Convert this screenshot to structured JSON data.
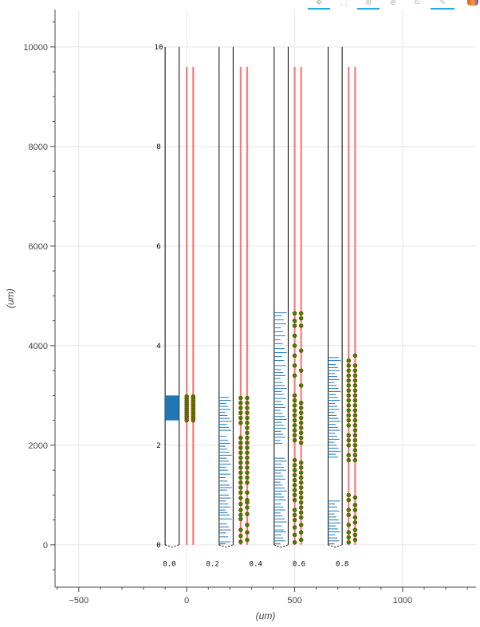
{
  "toolbar": {
    "tools": [
      {
        "name": "pan-tool",
        "glyph": "✥",
        "active": true
      },
      {
        "name": "box-zoom-tool",
        "glyph": "⬚",
        "active": false
      },
      {
        "name": "wheel-zoom-tool",
        "glyph": "⊕",
        "active": true
      },
      {
        "name": "zoom-in-tool",
        "glyph": "⊕",
        "active": false
      },
      {
        "name": "reset-tool",
        "glyph": "↻",
        "active": false
      },
      {
        "name": "hover-tool",
        "glyph": "✎",
        "active": true
      }
    ],
    "logo": "bokeh-logo-icon"
  },
  "chart_data": {
    "type": "scatter",
    "xlabel": "(um)",
    "ylabel": "(um)",
    "xlim": [
      -610,
      1340
    ],
    "ylim": [
      -850,
      10750
    ],
    "x_ticks": [
      -500,
      0,
      500,
      1000
    ],
    "x_tick_labels": [
      "−500",
      "0",
      "500",
      "1000"
    ],
    "y_ticks": [
      0,
      2000,
      4000,
      6000,
      8000,
      10000
    ],
    "y_tick_labels": [
      "0",
      "2000",
      "4000",
      "6000",
      "8000",
      "10000"
    ],
    "grid": true,
    "inner_axis": {
      "x": -130,
      "y_ticks": [
        0,
        2000,
        4000,
        6000,
        8000,
        10000
      ],
      "y_tick_labels": [
        "0",
        "2",
        "4",
        "6",
        "8",
        "10"
      ],
      "x_ticks": [
        -80,
        120,
        320,
        520,
        720
      ],
      "x_tick_labels": [
        "0.0",
        "0.2",
        "0.4",
        "0.6",
        "0.8"
      ],
      "label_y": -380
    },
    "colors": {
      "probe_line": "#000000",
      "trace": "#ff6b6b",
      "marker_fill": "#2a8a00",
      "marker_edge": "#a04000",
      "bar": "#1f77b4",
      "grid": "#e5e5e5",
      "axis": "#444444"
    },
    "probes": [
      {
        "box": [
          -100,
          -35
        ],
        "traces": [
          0,
          30
        ],
        "solid_bar": [
          2500,
          3000
        ],
        "dashes": [],
        "markers_left": [
          2500,
          2540,
          2580,
          2620,
          2660,
          2700,
          2740,
          2780,
          2820,
          2860,
          2900,
          2940,
          2980
        ],
        "markers_right": [
          2500,
          2540,
          2580,
          2620,
          2660,
          2700,
          2740,
          2780,
          2820,
          2860,
          2900,
          2940,
          2980
        ]
      },
      {
        "box": [
          150,
          215
        ],
        "traces": [
          250,
          280
        ],
        "solid_bar": null,
        "dashes": [
          20,
          60,
          160,
          240,
          300,
          360,
          420,
          520,
          600,
          650,
          700,
          760,
          820,
          880,
          940,
          1000,
          1100,
          1150,
          1200,
          1280,
          1350,
          1420,
          1500,
          1560,
          1620,
          1680,
          1740,
          1800,
          1860,
          1920,
          1980,
          2040,
          2100,
          2180,
          2300,
          2360,
          2420,
          2480,
          2540,
          2600,
          2660,
          2720,
          2780,
          2840,
          2900,
          2960
        ],
        "markers_left": [
          60,
          180,
          300,
          520,
          600,
          700,
          820,
          940,
          1050,
          1150,
          1250,
          1350,
          1450,
          1550,
          1650,
          1750,
          1850,
          1950,
          2050,
          2150,
          2450,
          2550,
          2650,
          2750,
          2850,
          2950
        ],
        "markers_right": [
          100,
          250,
          400,
          620,
          750,
          850,
          900,
          1050,
          1250,
          1350,
          1450,
          1550,
          1650,
          1750,
          1850,
          1950,
          2050,
          2150,
          2250,
          2350,
          2450,
          2550,
          2650,
          2750,
          2850,
          2950
        ]
      },
      {
        "box": [
          405,
          470
        ],
        "traces": [
          500,
          530
        ],
        "solid_bar": null,
        "dashes": [
          20,
          80,
          140,
          200,
          260,
          300,
          380,
          460,
          520,
          580,
          640,
          700,
          760,
          820,
          900,
          960,
          1020,
          1080,
          1140,
          1200,
          1260,
          1320,
          1380,
          1440,
          1500,
          1560,
          1620,
          1680,
          1740,
          2040,
          2100,
          2160,
          2220,
          2280,
          2340,
          2400,
          2460,
          2520,
          2580,
          2640,
          2700,
          2760,
          2820,
          2880,
          2940,
          3020,
          3080,
          3140,
          3200,
          3260,
          3340,
          3400,
          3460,
          3520,
          3600,
          3700,
          3780,
          3860,
          3940,
          4040,
          4120,
          4200,
          4280,
          4360,
          4440,
          4520,
          4600,
          4660
        ],
        "markers_left": [
          50,
          200,
          350,
          500,
          600,
          700,
          900,
          1000,
          1100,
          1200,
          1300,
          1400,
          1500,
          1600,
          1700,
          2100,
          2200,
          2300,
          2400,
          2500,
          2600,
          2700,
          2800,
          2900,
          3000,
          3400,
          3600,
          3800,
          4000,
          4200,
          4400,
          4500,
          4650
        ],
        "markers_right": [
          100,
          250,
          400,
          550,
          650,
          750,
          850,
          950,
          1050,
          1150,
          1250,
          1350,
          1450,
          1550,
          1650,
          2050,
          2150,
          2250,
          2350,
          2450,
          2550,
          2650,
          2750,
          2850,
          3200,
          3500,
          3900,
          4400,
          4550,
          4650
        ]
      },
      {
        "box": [
          655,
          720
        ],
        "traces": [
          750,
          780
        ],
        "solid_bar": null,
        "dashes": [
          20,
          80,
          140,
          200,
          260,
          320,
          380,
          440,
          500,
          560,
          620,
          680,
          760,
          820,
          880,
          1760,
          1820,
          1880,
          1940,
          2000,
          2060,
          2120,
          2180,
          2240,
          2300,
          2360,
          2420,
          2480,
          2540,
          2600,
          2660,
          2720,
          2780,
          2840,
          2900,
          2960,
          3020,
          3080,
          3140,
          3200,
          3260,
          3320,
          3380,
          3440,
          3500,
          3560,
          3620,
          3700,
          3760
        ],
        "markers_left": [
          50,
          150,
          250,
          400,
          600,
          700,
          900,
          1000,
          1700,
          1800,
          2000,
          2100,
          2200,
          2400,
          2500,
          2600,
          2700,
          2800,
          2900,
          3000,
          3100,
          3200,
          3300,
          3400,
          3500,
          3600,
          3700
        ],
        "markers_right": [
          100,
          200,
          300,
          450,
          550,
          700,
          800,
          950,
          1700,
          1800,
          1900,
          2000,
          2100,
          2200,
          2300,
          2400,
          2500,
          2600,
          2700,
          2800,
          2900,
          3000,
          3100,
          3200,
          3300,
          3400,
          3500,
          3600,
          3800
        ]
      }
    ]
  }
}
